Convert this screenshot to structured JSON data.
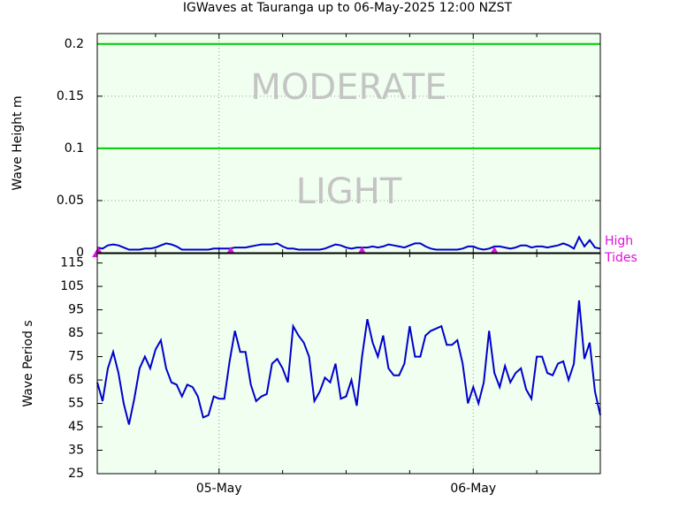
{
  "title": "IGWaves at Tauranga up to 06-May-2025 12:00 NZST",
  "chart_data": [
    {
      "type": "line",
      "y_label": "Wave Height m",
      "color": "#0000cc",
      "xlim": [
        0,
        47.5
      ],
      "xticks": [
        11.5,
        35.5
      ],
      "xminorticks": [
        5.5,
        17.5,
        23.5,
        29.5,
        41.5
      ],
      "ylim": [
        0,
        0.21
      ],
      "yticks": [
        0,
        0.05,
        0.1,
        0.15,
        0.2
      ],
      "grid": "both",
      "bands": [
        {
          "label": "LIGHT",
          "upper": 0.1,
          "color": "#00cc00"
        },
        {
          "label": "MODERATE",
          "upper": 0.2,
          "color": "#00cc00"
        }
      ],
      "tides": {
        "x": [
          0.1,
          12.6,
          25.0,
          37.5
        ],
        "label_lines": [
          "High",
          "Tides"
        ],
        "color": "#dd11dd"
      },
      "x": [
        0,
        0.5,
        1,
        1.5,
        2,
        2.5,
        3,
        3.5,
        4,
        4.5,
        5,
        5.5,
        6,
        6.5,
        7,
        7.5,
        8,
        8.5,
        9,
        9.5,
        10,
        10.5,
        11,
        11.5,
        12,
        12.5,
        13,
        13.5,
        14,
        14.5,
        15,
        15.5,
        16,
        16.5,
        17,
        17.5,
        18,
        18.5,
        19,
        19.5,
        20,
        20.5,
        21,
        21.5,
        22,
        22.5,
        23,
        23.5,
        24,
        24.5,
        25,
        25.5,
        26,
        26.5,
        27,
        27.5,
        28,
        28.5,
        29,
        29.5,
        30,
        30.5,
        31,
        31.5,
        32,
        32.5,
        33,
        33.5,
        34,
        34.5,
        35,
        35.5,
        36,
        36.5,
        37,
        37.5,
        38,
        38.5,
        39,
        39.5,
        40,
        40.5,
        41,
        41.5,
        42,
        42.5,
        43,
        43.5,
        44,
        44.5,
        45,
        45.5,
        46,
        46.5,
        47,
        47.5
      ],
      "values": [
        0.005,
        0.004,
        0.007,
        0.008,
        0.007,
        0.005,
        0.003,
        0.003,
        0.003,
        0.004,
        0.004,
        0.005,
        0.007,
        0.009,
        0.008,
        0.006,
        0.003,
        0.003,
        0.003,
        0.003,
        0.003,
        0.003,
        0.004,
        0.004,
        0.004,
        0.004,
        0.005,
        0.005,
        0.005,
        0.006,
        0.007,
        0.008,
        0.008,
        0.008,
        0.009,
        0.006,
        0.004,
        0.004,
        0.003,
        0.003,
        0.003,
        0.003,
        0.003,
        0.004,
        0.006,
        0.008,
        0.007,
        0.005,
        0.004,
        0.005,
        0.005,
        0.005,
        0.006,
        0.005,
        0.006,
        0.008,
        0.007,
        0.006,
        0.005,
        0.007,
        0.009,
        0.009,
        0.006,
        0.004,
        0.003,
        0.003,
        0.003,
        0.003,
        0.003,
        0.004,
        0.006,
        0.006,
        0.004,
        0.003,
        0.004,
        0.006,
        0.006,
        0.005,
        0.004,
        0.005,
        0.007,
        0.007,
        0.005,
        0.006,
        0.006,
        0.005,
        0.006,
        0.007,
        0.009,
        0.007,
        0.004,
        0.015,
        0.006,
        0.012,
        0.005,
        0.004
      ]
    },
    {
      "type": "line",
      "y_label": "Wave Period s",
      "color": "#0000cc",
      "xlim": [
        0,
        47.5
      ],
      "xticks": [
        {
          "value": 11.5,
          "label": "05-May"
        },
        {
          "value": 35.5,
          "label": "06-May"
        }
      ],
      "xminorticks": [
        5.5,
        17.5,
        23.5,
        29.5,
        41.5
      ],
      "ylim": [
        25,
        119
      ],
      "yticks": [
        25,
        35,
        45,
        55,
        65,
        75,
        85,
        95,
        105,
        115
      ],
      "grid": "x",
      "x": [
        0,
        0.5,
        1,
        1.5,
        2,
        2.5,
        3,
        3.5,
        4,
        4.5,
        5,
        5.5,
        6,
        6.5,
        7,
        7.5,
        8,
        8.5,
        9,
        9.5,
        10,
        10.5,
        11,
        11.5,
        12,
        12.5,
        13,
        13.5,
        14,
        14.5,
        15,
        15.5,
        16,
        16.5,
        17,
        17.5,
        18,
        18.5,
        19,
        19.5,
        20,
        20.5,
        21,
        21.5,
        22,
        22.5,
        23,
        23.5,
        24,
        24.5,
        25,
        25.5,
        26,
        26.5,
        27,
        27.5,
        28,
        28.5,
        29,
        29.5,
        30,
        30.5,
        31,
        31.5,
        32,
        32.5,
        33,
        33.5,
        34,
        34.5,
        35,
        35.5,
        36,
        36.5,
        37,
        37.5,
        38,
        38.5,
        39,
        39.5,
        40,
        40.5,
        41,
        41.5,
        42,
        42.5,
        43,
        43.5,
        44,
        44.5,
        45,
        45.5,
        46,
        46.5,
        47,
        47.5
      ],
      "values": [
        64,
        56,
        70,
        77,
        68,
        55,
        46,
        57,
        70,
        75,
        70,
        78,
        82,
        70,
        64,
        63,
        58,
        63,
        62,
        58,
        49,
        50,
        58,
        57,
        57,
        73,
        86,
        77,
        77,
        63,
        56,
        58,
        59,
        72,
        74,
        70,
        64,
        88,
        84,
        81,
        75,
        56,
        60,
        66,
        64,
        72,
        57,
        58,
        65,
        54,
        75,
        91,
        81,
        75,
        84,
        70,
        67,
        67,
        72,
        88,
        75,
        75,
        84,
        86,
        87,
        88,
        80,
        80,
        82,
        72,
        55,
        62,
        55,
        64,
        86,
        68,
        62,
        71,
        64,
        68,
        70,
        61,
        57,
        75,
        75,
        68,
        67,
        72,
        73,
        65,
        72,
        99,
        74,
        81,
        60,
        50
      ]
    }
  ]
}
